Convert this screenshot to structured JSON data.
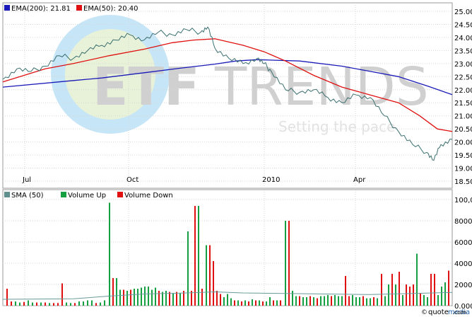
{
  "chart_data": [
    {
      "type": "line",
      "legend_placement": "top-left",
      "x_tick_labels": [
        "Jul",
        "Oct",
        "2010",
        "Apr"
      ],
      "y_tick_labels": [
        "25.00",
        "24.50",
        "24.00",
        "23.50",
        "23.00",
        "22.50",
        "22.00",
        "21.50",
        "21.00",
        "20.50",
        "20.00",
        "19.50",
        "19.00",
        "18.50"
      ],
      "ylim": [
        18.5,
        25.0
      ],
      "grid": true,
      "colors": {
        "price": "#3a6f6f",
        "ema200": "#1a1ab8",
        "ema50": "#e01010",
        "grid": "#d6d6d6",
        "frame": "#9a9a9a"
      },
      "series": [
        {
          "name": "EMA(200): 21.81",
          "color": "#1a1ab8",
          "x": [
            0,
            100,
            140,
            200,
            250,
            300,
            330,
            360,
            420,
            480,
            520,
            560,
            600,
            636
          ],
          "values": [
            22.1,
            22.35,
            22.45,
            22.65,
            22.82,
            22.98,
            23.1,
            23.15,
            23.1,
            22.9,
            22.7,
            22.5,
            22.15,
            21.81
          ]
        },
        {
          "name": "EMA(50): 20.40",
          "color": "#e01010",
          "x": [
            0,
            60,
            100,
            150,
            200,
            240,
            270,
            300,
            340,
            370,
            400,
            440,
            480,
            520,
            560,
            590,
            615,
            636
          ],
          "values": [
            22.3,
            22.8,
            23.0,
            23.3,
            23.55,
            23.8,
            23.9,
            23.95,
            23.7,
            23.45,
            23.1,
            22.55,
            22.1,
            21.8,
            21.5,
            21.0,
            20.5,
            20.4
          ]
        },
        {
          "name": "Price",
          "color": "#3a6f6f",
          "x": [
            0,
            20,
            40,
            60,
            80,
            100,
            120,
            140,
            160,
            180,
            200,
            220,
            240,
            260,
            280,
            290,
            300,
            320,
            340,
            360,
            370,
            380,
            400,
            420,
            440,
            460,
            480,
            500,
            520,
            540,
            560,
            580,
            600,
            610,
            620,
            636
          ],
          "values": [
            22.4,
            22.8,
            22.7,
            22.9,
            23.3,
            23.2,
            23.5,
            23.7,
            23.9,
            24.1,
            23.9,
            24.2,
            24.1,
            24.3,
            24.2,
            24.4,
            23.6,
            23.2,
            23.0,
            23.2,
            23.0,
            22.7,
            22.0,
            21.9,
            22.0,
            21.7,
            21.5,
            21.8,
            21.7,
            21.0,
            20.4,
            19.9,
            19.6,
            19.3,
            19.9,
            20.1
          ]
        }
      ]
    },
    {
      "type": "bar",
      "legend_placement": "top-left",
      "y_tick_labels": [
        "100,000",
        "80000",
        "60000",
        "40000",
        "20000",
        "0.000"
      ],
      "ylim": [
        0,
        100000
      ],
      "grid": true,
      "colors": {
        "up": "#14a040",
        "down": "#e01010",
        "sma": "#6a9a9a"
      },
      "legend": [
        {
          "label": "SMA (50)",
          "color": "#5f8f8f"
        },
        {
          "label": "Volume Up",
          "color": "#14a040"
        },
        {
          "label": "Volume Down",
          "color": "#e01010"
        }
      ],
      "bars": [
        {
          "x": 6,
          "v": 16000,
          "d": "down"
        },
        {
          "x": 12,
          "v": 4000,
          "d": "down"
        },
        {
          "x": 18,
          "v": 4000,
          "d": "up"
        },
        {
          "x": 24,
          "v": 3000,
          "d": "up"
        },
        {
          "x": 30,
          "v": 3500,
          "d": "down"
        },
        {
          "x": 36,
          "v": 5000,
          "d": "up"
        },
        {
          "x": 42,
          "v": 3000,
          "d": "up"
        },
        {
          "x": 48,
          "v": 3000,
          "d": "down"
        },
        {
          "x": 54,
          "v": 3000,
          "d": "up"
        },
        {
          "x": 60,
          "v": 3000,
          "d": "down"
        },
        {
          "x": 66,
          "v": 2500,
          "d": "up"
        },
        {
          "x": 72,
          "v": 2500,
          "d": "down"
        },
        {
          "x": 78,
          "v": 2500,
          "d": "down"
        },
        {
          "x": 84,
          "v": 21000,
          "d": "down"
        },
        {
          "x": 90,
          "v": 3000,
          "d": "up"
        },
        {
          "x": 96,
          "v": 2500,
          "d": "up"
        },
        {
          "x": 102,
          "v": 2500,
          "d": "down"
        },
        {
          "x": 108,
          "v": 4000,
          "d": "up"
        },
        {
          "x": 114,
          "v": 4000,
          "d": "up"
        },
        {
          "x": 120,
          "v": 5000,
          "d": "up"
        },
        {
          "x": 126,
          "v": 5000,
          "d": "up"
        },
        {
          "x": 132,
          "v": 2500,
          "d": "down"
        },
        {
          "x": 138,
          "v": 3000,
          "d": "up"
        },
        {
          "x": 144,
          "v": 5000,
          "d": "up"
        },
        {
          "x": 151,
          "v": 97000,
          "d": "up"
        },
        {
          "x": 156,
          "v": 26000,
          "d": "down"
        },
        {
          "x": 161,
          "v": 26000,
          "d": "up"
        },
        {
          "x": 166,
          "v": 15000,
          "d": "up"
        },
        {
          "x": 171,
          "v": 15000,
          "d": "down"
        },
        {
          "x": 176,
          "v": 14000,
          "d": "up"
        },
        {
          "x": 181,
          "v": 15000,
          "d": "down"
        },
        {
          "x": 186,
          "v": 16000,
          "d": "up"
        },
        {
          "x": 191,
          "v": 16000,
          "d": "up"
        },
        {
          "x": 196,
          "v": 17000,
          "d": "up"
        },
        {
          "x": 201,
          "v": 18000,
          "d": "up"
        },
        {
          "x": 206,
          "v": 18000,
          "d": "up"
        },
        {
          "x": 211,
          "v": 15000,
          "d": "up"
        },
        {
          "x": 216,
          "v": 17000,
          "d": "up"
        },
        {
          "x": 221,
          "v": 14000,
          "d": "down"
        },
        {
          "x": 226,
          "v": 13000,
          "d": "up"
        },
        {
          "x": 231,
          "v": 14000,
          "d": "up"
        },
        {
          "x": 236,
          "v": 13000,
          "d": "down"
        },
        {
          "x": 241,
          "v": 12000,
          "d": "up"
        },
        {
          "x": 246,
          "v": 13000,
          "d": "down"
        },
        {
          "x": 251,
          "v": 12000,
          "d": "up"
        },
        {
          "x": 256,
          "v": 14000,
          "d": "down"
        },
        {
          "x": 262,
          "v": 70000,
          "d": "up"
        },
        {
          "x": 267,
          "v": 14000,
          "d": "down"
        },
        {
          "x": 272,
          "v": 94000,
          "d": "down"
        },
        {
          "x": 277,
          "v": 94000,
          "d": "up"
        },
        {
          "x": 282,
          "v": 16000,
          "d": "down"
        },
        {
          "x": 288,
          "v": 57000,
          "d": "up"
        },
        {
          "x": 293,
          "v": 57000,
          "d": "down"
        },
        {
          "x": 298,
          "v": 42000,
          "d": "down"
        },
        {
          "x": 303,
          "v": 14000,
          "d": "down"
        },
        {
          "x": 308,
          "v": 11000,
          "d": "down"
        },
        {
          "x": 313,
          "v": 8000,
          "d": "up"
        },
        {
          "x": 318,
          "v": 11000,
          "d": "up"
        },
        {
          "x": 323,
          "v": 7000,
          "d": "up"
        },
        {
          "x": 328,
          "v": 5000,
          "d": "down"
        },
        {
          "x": 333,
          "v": 5000,
          "d": "up"
        },
        {
          "x": 338,
          "v": 4000,
          "d": "down"
        },
        {
          "x": 343,
          "v": 5000,
          "d": "up"
        },
        {
          "x": 348,
          "v": 4000,
          "d": "down"
        },
        {
          "x": 353,
          "v": 6000,
          "d": "up"
        },
        {
          "x": 358,
          "v": 5000,
          "d": "down"
        },
        {
          "x": 363,
          "v": 5000,
          "d": "up"
        },
        {
          "x": 368,
          "v": 4000,
          "d": "down"
        },
        {
          "x": 373,
          "v": 4000,
          "d": "up"
        },
        {
          "x": 378,
          "v": 8000,
          "d": "up"
        },
        {
          "x": 383,
          "v": 5000,
          "d": "down"
        },
        {
          "x": 388,
          "v": 5000,
          "d": "up"
        },
        {
          "x": 393,
          "v": 5000,
          "d": "down"
        },
        {
          "x": 400,
          "v": 80000,
          "d": "up"
        },
        {
          "x": 405,
          "v": 80000,
          "d": "down"
        },
        {
          "x": 410,
          "v": 14000,
          "d": "up"
        },
        {
          "x": 415,
          "v": 9000,
          "d": "up"
        },
        {
          "x": 420,
          "v": 9000,
          "d": "down"
        },
        {
          "x": 425,
          "v": 8000,
          "d": "up"
        },
        {
          "x": 430,
          "v": 8000,
          "d": "up"
        },
        {
          "x": 435,
          "v": 9000,
          "d": "down"
        },
        {
          "x": 440,
          "v": 8000,
          "d": "up"
        },
        {
          "x": 445,
          "v": 7000,
          "d": "down"
        },
        {
          "x": 450,
          "v": 9000,
          "d": "up"
        },
        {
          "x": 455,
          "v": 9000,
          "d": "up"
        },
        {
          "x": 460,
          "v": 10000,
          "d": "up"
        },
        {
          "x": 465,
          "v": 9000,
          "d": "down"
        },
        {
          "x": 470,
          "v": 10000,
          "d": "up"
        },
        {
          "x": 475,
          "v": 9000,
          "d": "up"
        },
        {
          "x": 480,
          "v": 9000,
          "d": "up"
        },
        {
          "x": 485,
          "v": 28000,
          "d": "down"
        },
        {
          "x": 490,
          "v": 9000,
          "d": "down"
        },
        {
          "x": 495,
          "v": 10000,
          "d": "up"
        },
        {
          "x": 500,
          "v": 8000,
          "d": "up"
        },
        {
          "x": 505,
          "v": 8000,
          "d": "up"
        },
        {
          "x": 510,
          "v": 9000,
          "d": "down"
        },
        {
          "x": 515,
          "v": 7000,
          "d": "up"
        },
        {
          "x": 520,
          "v": 7000,
          "d": "up"
        },
        {
          "x": 525,
          "v": 8000,
          "d": "down"
        },
        {
          "x": 530,
          "v": 7000,
          "d": "up"
        },
        {
          "x": 536,
          "v": 30000,
          "d": "down"
        },
        {
          "x": 541,
          "v": 9000,
          "d": "up"
        },
        {
          "x": 546,
          "v": 20000,
          "d": "up"
        },
        {
          "x": 551,
          "v": 30000,
          "d": "down"
        },
        {
          "x": 556,
          "v": 20000,
          "d": "up"
        },
        {
          "x": 561,
          "v": 32000,
          "d": "down"
        },
        {
          "x": 566,
          "v": 10000,
          "d": "up"
        },
        {
          "x": 571,
          "v": 20000,
          "d": "down"
        },
        {
          "x": 576,
          "v": 18000,
          "d": "down"
        },
        {
          "x": 581,
          "v": 20000,
          "d": "down"
        },
        {
          "x": 586,
          "v": 49000,
          "d": "up"
        },
        {
          "x": 591,
          "v": 12000,
          "d": "down"
        },
        {
          "x": 596,
          "v": 10000,
          "d": "up"
        },
        {
          "x": 601,
          "v": 8000,
          "d": "up"
        },
        {
          "x": 606,
          "v": 30000,
          "d": "down"
        },
        {
          "x": 611,
          "v": 30000,
          "d": "down"
        },
        {
          "x": 616,
          "v": 10000,
          "d": "up"
        },
        {
          "x": 621,
          "v": 18000,
          "d": "up"
        },
        {
          "x": 626,
          "v": 22000,
          "d": "up"
        },
        {
          "x": 631,
          "v": 33000,
          "d": "down"
        }
      ],
      "sma50": {
        "x": [
          0,
          100,
          150,
          200,
          260,
          300,
          340,
          400,
          460,
          520,
          580,
          636
        ],
        "values": [
          6000,
          6500,
          9000,
          11000,
          12000,
          13000,
          12000,
          11500,
          11000,
          10500,
          11500,
          12500
        ]
      }
    }
  ],
  "watermark": {
    "main_prefix": "ETF",
    "main_suffix": "TRENDS",
    "tagline": "Setting the pace",
    "circle_color": "#c6e6f8",
    "circle_inner": "#e8f2d8"
  },
  "footer": {
    "copyright": "©",
    "brand_a": "quote",
    "brand_b": "media",
    "brand_suffix": ".com"
  }
}
